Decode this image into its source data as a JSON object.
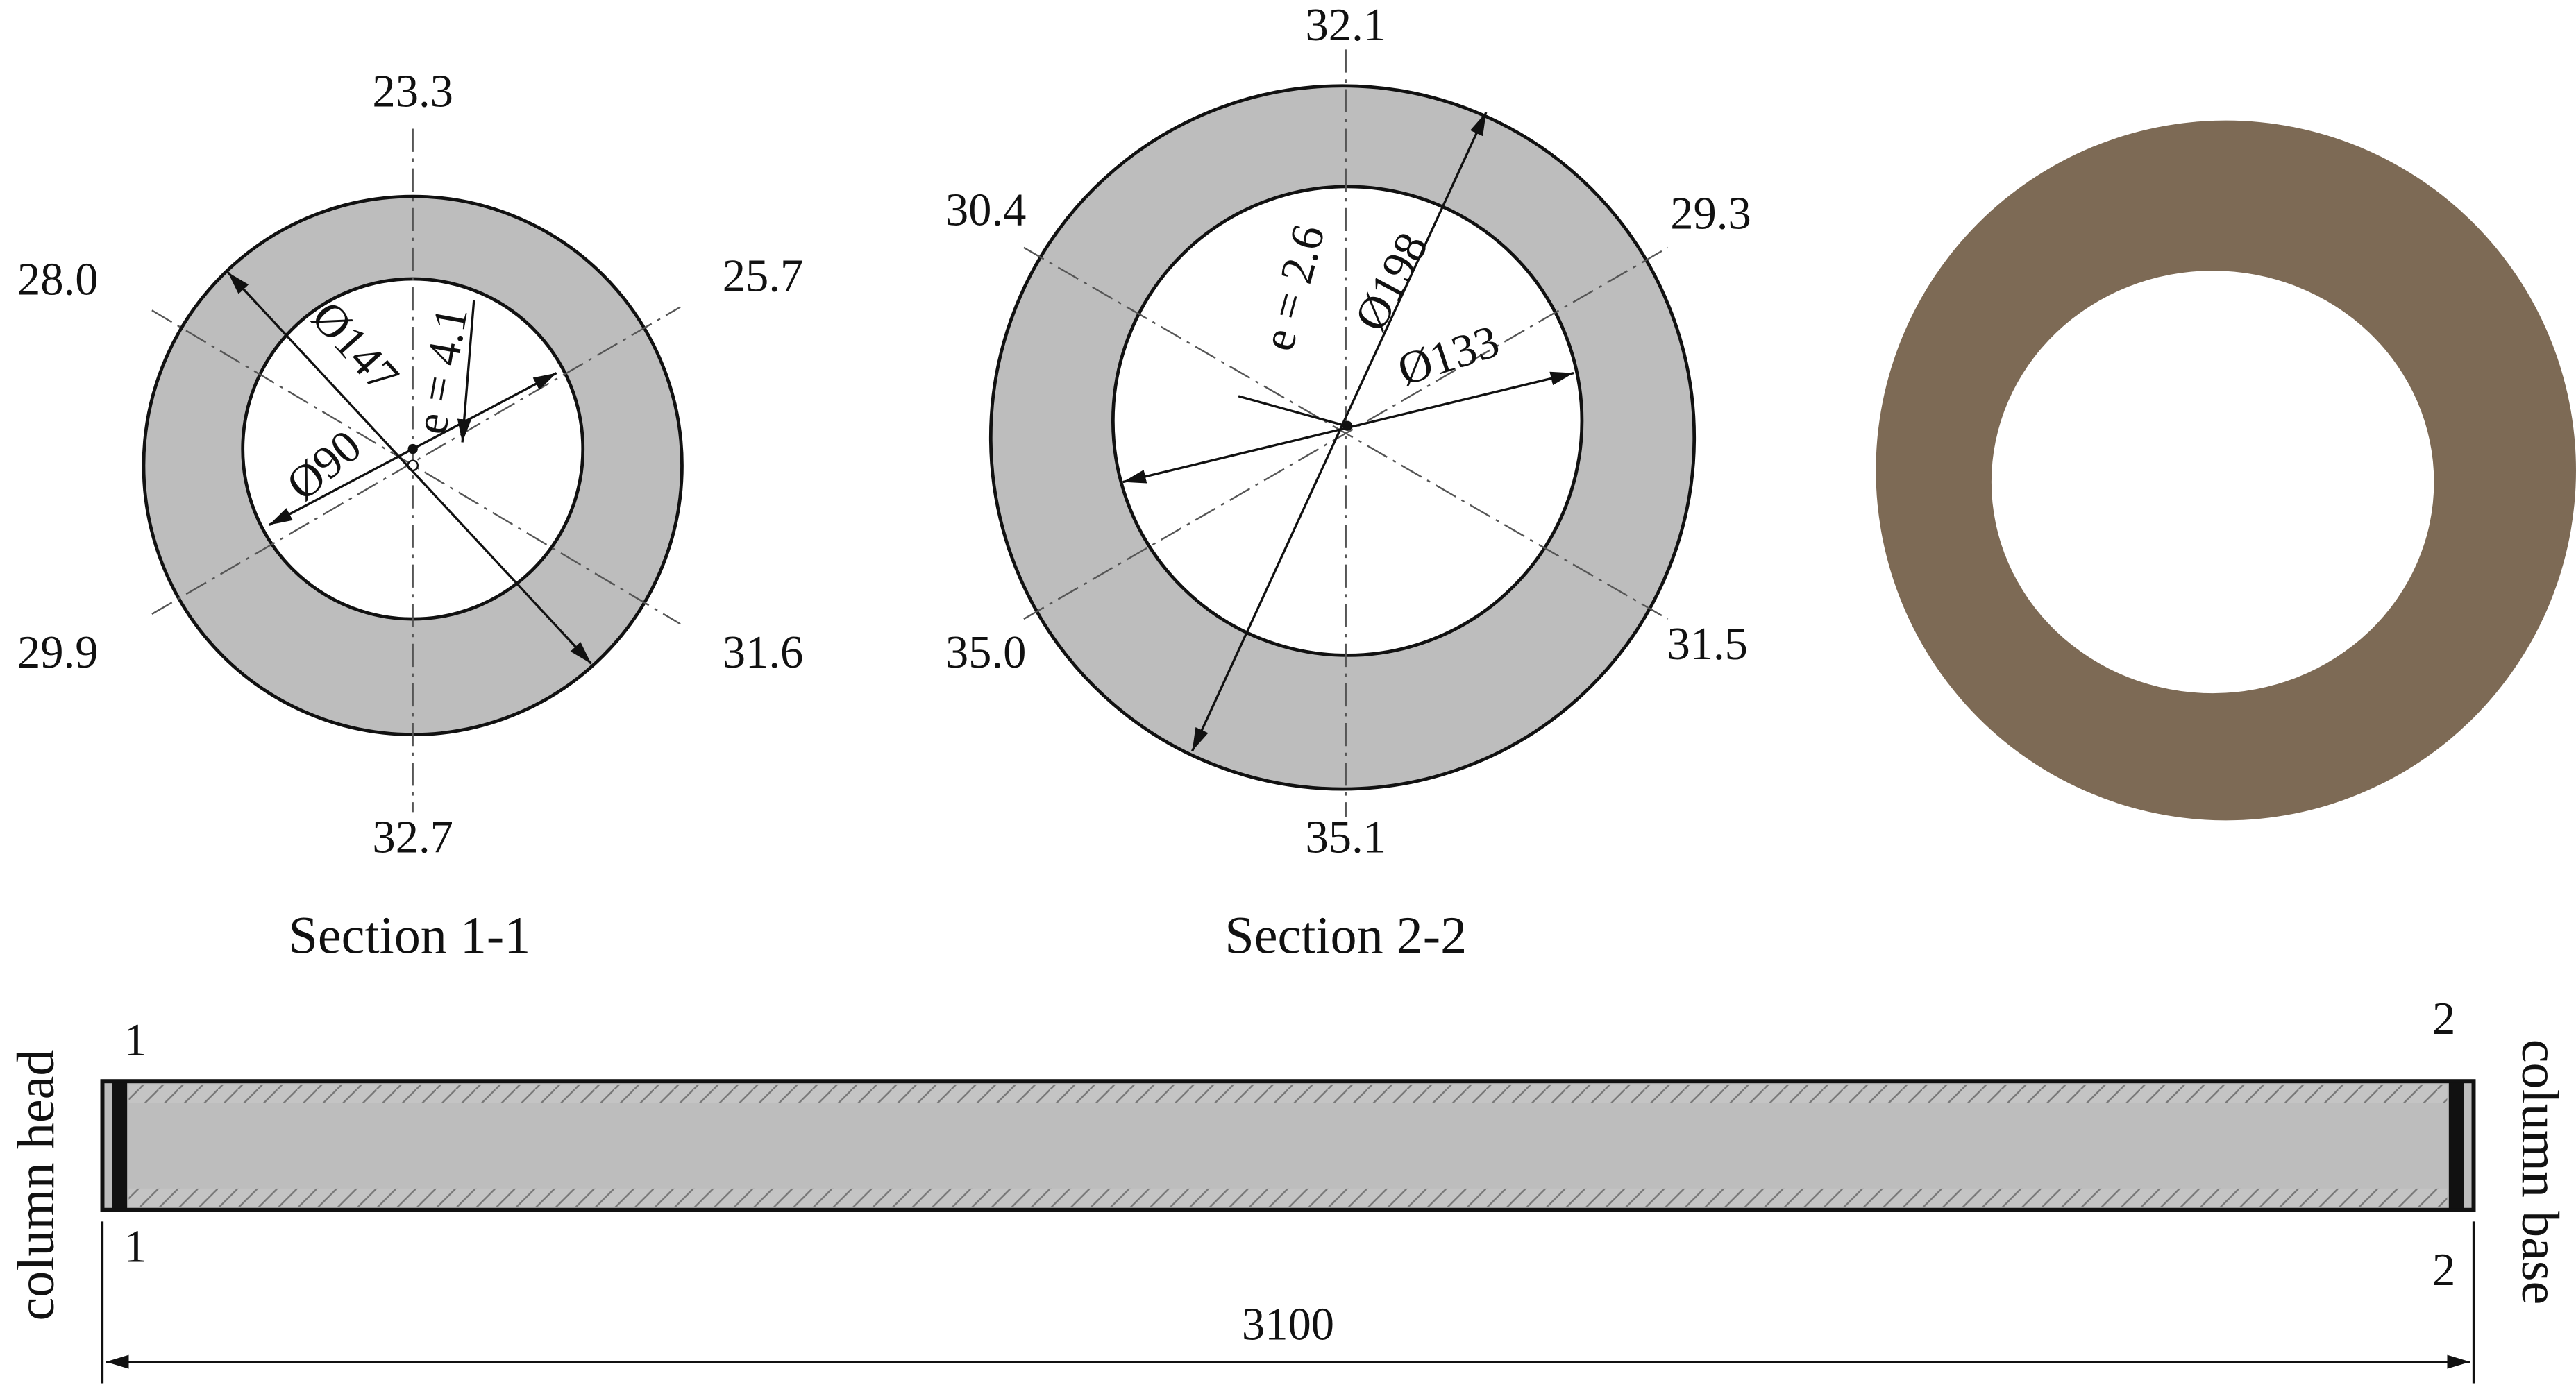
{
  "sections": [
    {
      "title": "Section 1-1",
      "top": "23.3",
      "upper_left": "28.0",
      "upper_right": "25.7",
      "lower_left": "29.9",
      "lower_right": "31.6",
      "bottom": "32.7",
      "outer_diameter": "Ø147",
      "inner_diameter": "Ø90",
      "eccentricity": "e = 4.1"
    },
    {
      "title": "Section 2-2",
      "top": "32.1",
      "upper_left": "30.4",
      "upper_right": "29.3",
      "lower_left": "35.0",
      "lower_right": "31.5",
      "bottom": "35.1",
      "outer_diameter": "Ø198",
      "inner_diameter": "Ø133",
      "eccentricity": "e = 2.6"
    }
  ],
  "column": {
    "head_label": "column head",
    "base_label": "column base",
    "head_mark_top": "1",
    "head_mark_bottom": "1",
    "base_mark_top": "2",
    "base_mark_bottom": "2",
    "length": "3100"
  }
}
